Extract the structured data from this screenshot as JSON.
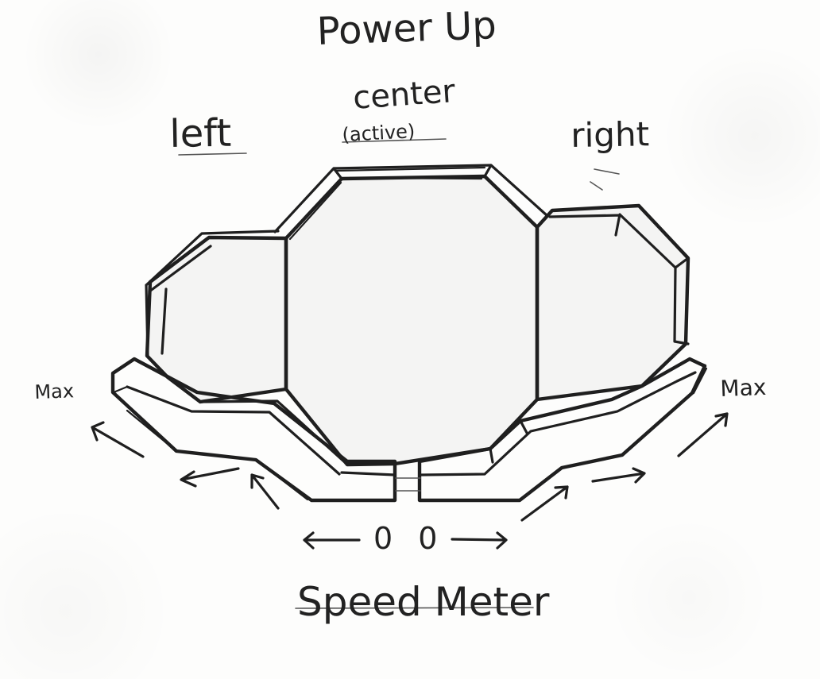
{
  "diagram": {
    "title_top": "Power Up",
    "left_label": "left",
    "center_label": "center",
    "center_note": "(active)",
    "right_label": "right",
    "max_left": "Max",
    "max_right": "Max",
    "zero_label": "0 0",
    "title_bottom": "Speed Meter"
  }
}
